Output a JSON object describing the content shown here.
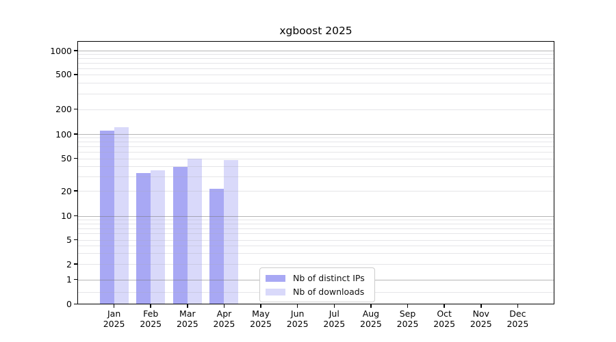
{
  "figure": {
    "title": "xgboost 2025"
  },
  "chart_data": {
    "type": "bar",
    "title": "xgboost 2025",
    "categories": [
      "Jan 2025",
      "Feb 2025",
      "Mar 2025",
      "Apr 2025",
      "May 2025",
      "Jun 2025",
      "Jul 2025",
      "Aug 2025",
      "Sep 2025",
      "Oct 2025",
      "Nov 2025",
      "Dec 2025"
    ],
    "series": [
      {
        "name": "Nb of distinct IPs",
        "color": "#a8a8f4",
        "values": [
          110,
          33,
          39,
          21,
          0,
          0,
          0,
          0,
          0,
          0,
          0,
          0
        ]
      },
      {
        "name": "Nb of downloads",
        "color": "#d9d9fa",
        "values": [
          122,
          36,
          50,
          48,
          0,
          0,
          0,
          0,
          0,
          0,
          0,
          0
        ]
      }
    ],
    "xlabel": "",
    "ylabel": "",
    "yticks": [
      0,
      1,
      2,
      5,
      10,
      20,
      50,
      100,
      200,
      500,
      1000
    ],
    "ylim": [
      0,
      1400
    ],
    "yscale": "symlog",
    "grid": true,
    "grid_on_top": true,
    "legend_position": "lower center",
    "bar_colors": {
      "distinct_ips": "#a8a8f4",
      "downloads": "#d9d9fa"
    }
  }
}
